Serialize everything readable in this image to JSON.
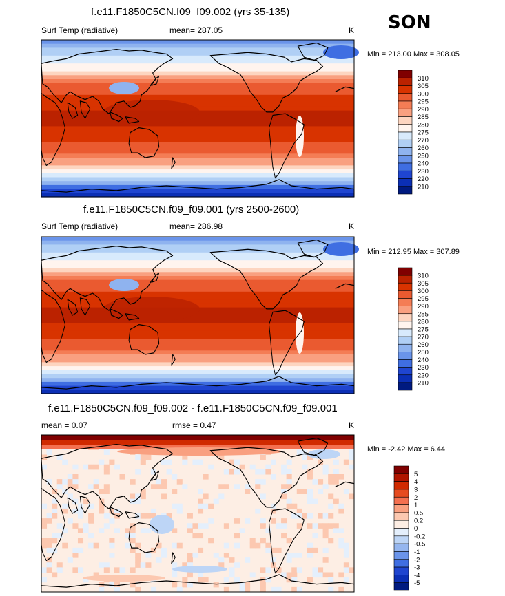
{
  "season": "SON",
  "chart_data": [
    {
      "type": "heatmap",
      "title": "f.e11.F1850C5CN.f09_f09.002 (yrs 35-135)",
      "variable": "Surf Temp (radiative)",
      "mean_text": "mean= 287.05",
      "units": "K",
      "minmax_text": "Min = 213.00 Max = 308.05",
      "min": 213.0,
      "max": 308.05,
      "levels": [
        "310",
        "305",
        "300",
        "295",
        "290",
        "285",
        "280",
        "275",
        "270",
        "260",
        "250",
        "240",
        "230",
        "220",
        "210"
      ],
      "colors": [
        "#800000",
        "#bb2200",
        "#d83300",
        "#ea5a30",
        "#f47d55",
        "#f9a080",
        "#fdd5c0",
        "#fff4ee",
        "#d8eafc",
        "#b0cff5",
        "#8fb3ef",
        "#6a94ea",
        "#3f6ee2",
        "#1f45d0",
        "#0b2fb5",
        "#001a80"
      ]
    },
    {
      "type": "heatmap",
      "title": "f.e11.F1850C5CN.f09_f09.001 (yrs 2500-2600)",
      "variable": "Surf Temp (radiative)",
      "mean_text": "mean= 286.98",
      "units": "K",
      "minmax_text": "Min = 212.95 Max = 307.89",
      "min": 212.95,
      "max": 307.89,
      "levels": [
        "310",
        "305",
        "300",
        "295",
        "290",
        "285",
        "280",
        "275",
        "270",
        "260",
        "250",
        "240",
        "230",
        "220",
        "210"
      ],
      "colors": [
        "#800000",
        "#bb2200",
        "#d83300",
        "#ea5a30",
        "#f47d55",
        "#f9a080",
        "#fdd5c0",
        "#fff4ee",
        "#d8eafc",
        "#b0cff5",
        "#8fb3ef",
        "#6a94ea",
        "#3f6ee2",
        "#1f45d0",
        "#0b2fb5",
        "#001a80"
      ]
    },
    {
      "type": "heatmap",
      "title": "f.e11.F1850C5CN.f09_f09.002 - f.e11.F1850C5CN.f09_f09.001",
      "mean_text": "mean =   0.07",
      "rmse_text": "rmse =   0.47",
      "units": "K",
      "minmax_text": "Min =  -2.42 Max =   6.44",
      "min": -2.42,
      "max": 6.44,
      "levels": [
        "5",
        "4",
        "3",
        "2",
        "1",
        "0.5",
        "0.2",
        "0",
        "-0.2",
        "-0.5",
        "-1",
        "-2",
        "-3",
        "-4",
        "-5"
      ],
      "colors": [
        "#800000",
        "#b01500",
        "#d02a00",
        "#e64b20",
        "#f47050",
        "#f9a080",
        "#fcc8b0",
        "#fdeee4",
        "#e4effc",
        "#bdd5f6",
        "#95b6ef",
        "#6a94ea",
        "#3f6ee2",
        "#1f45d0",
        "#0b2fb5",
        "#001a80"
      ]
    }
  ]
}
